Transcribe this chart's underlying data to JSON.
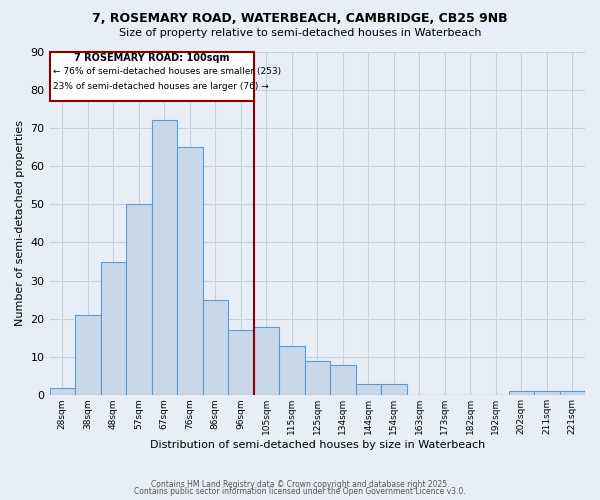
{
  "title1": "7, ROSEMARY ROAD, WATERBEACH, CAMBRIDGE, CB25 9NB",
  "title2": "Size of property relative to semi-detached houses in Waterbeach",
  "xlabel": "Distribution of semi-detached houses by size in Waterbeach",
  "ylabel": "Number of semi-detached properties",
  "bin_labels": [
    "28sqm",
    "38sqm",
    "48sqm",
    "57sqm",
    "67sqm",
    "76sqm",
    "86sqm",
    "96sqm",
    "105sqm",
    "115sqm",
    "125sqm",
    "134sqm",
    "144sqm",
    "154sqm",
    "163sqm",
    "173sqm",
    "182sqm",
    "192sqm",
    "202sqm",
    "211sqm",
    "221sqm"
  ],
  "counts": [
    2,
    21,
    35,
    50,
    72,
    65,
    25,
    17,
    18,
    13,
    9,
    8,
    3,
    3,
    0,
    0,
    0,
    0,
    1,
    1,
    1
  ],
  "n_bins": 21,
  "property_bin_idx": 8,
  "bar_color": "#c8d8e8",
  "bar_edge_color": "#5b9bd5",
  "annotation_box_color": "#8b0000",
  "vline_color": "#8b0000",
  "annotation_title": "7 ROSEMARY ROAD: 100sqm",
  "annotation_line1": "← 76% of semi-detached houses are smaller (253)",
  "annotation_line2": "23% of semi-detached houses are larger (76) →",
  "grid_color": "#c5d0e0",
  "bg_color": "#e8eef8",
  "ylim": [
    0,
    90
  ],
  "yticks": [
    0,
    10,
    20,
    30,
    40,
    50,
    60,
    70,
    80,
    90
  ],
  "footer1": "Contains HM Land Registry data © Crown copyright and database right 2025.",
  "footer2": "Contains public sector information licensed under the Open Government Licence v3.0."
}
